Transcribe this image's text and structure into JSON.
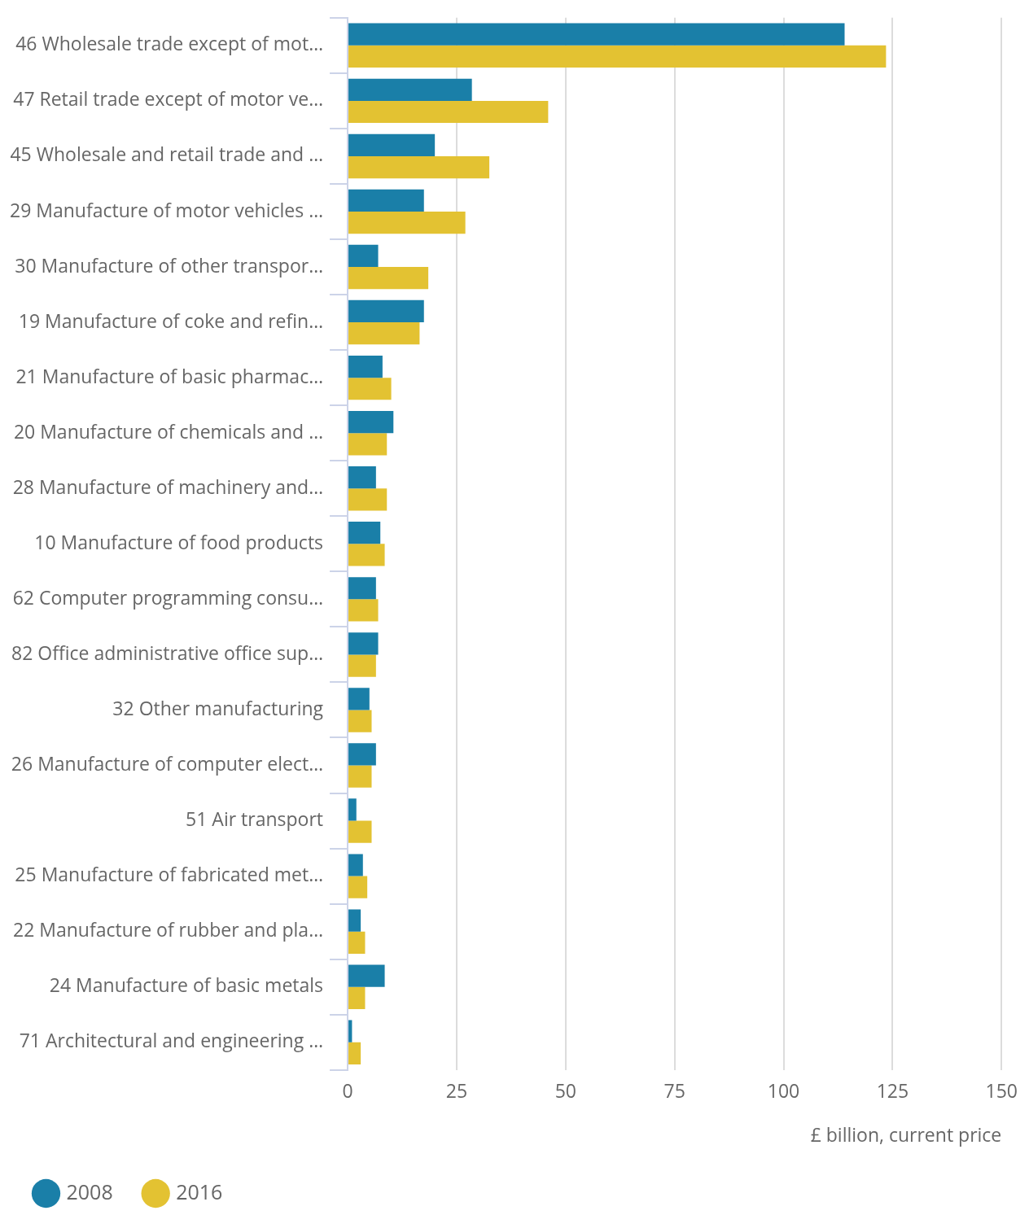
{
  "chart_data": {
    "type": "bar",
    "orientation": "horizontal",
    "xlabel": "£ billion, current price",
    "categories": [
      "46 Wholesale trade except of mot…",
      "47 Retail trade except of motor ve…",
      "45 Wholesale and retail trade and …",
      "29 Manufacture of motor vehicles …",
      "30 Manufacture of other transpor…",
      "19 Manufacture of coke and refin…",
      "21 Manufacture of basic pharmac…",
      "20 Manufacture of chemicals and …",
      "28 Manufacture of machinery and…",
      "10 Manufacture of food products",
      "62 Computer programming consu…",
      "82 Office administrative office sup…",
      "32 Other manufacturing",
      "26 Manufacture of computer elect…",
      "51 Air transport",
      "25 Manufacture of fabricated met…",
      "22 Manufacture of rubber and pla…",
      "24 Manufacture of basic metals",
      "71 Architectural and engineering …"
    ],
    "series": [
      {
        "name": "2008",
        "color": "#1a7fa8",
        "values": [
          114,
          28.5,
          20,
          17.5,
          7,
          17.5,
          8,
          10.5,
          6.5,
          7.5,
          6.5,
          7,
          5,
          6.5,
          2,
          3.5,
          3,
          8.5,
          1
        ]
      },
      {
        "name": "2016",
        "color": "#e3c232",
        "values": [
          123.5,
          46,
          32.5,
          27,
          18.5,
          16.5,
          10,
          9,
          9,
          8.5,
          7,
          6.5,
          5.5,
          5.5,
          5.5,
          4.5,
          4,
          4,
          3
        ]
      }
    ],
    "xlim": [
      0,
      150
    ],
    "xticks": [
      0,
      25,
      50,
      75,
      100,
      125,
      150
    ],
    "grid": "x",
    "legend": "bottom left"
  }
}
